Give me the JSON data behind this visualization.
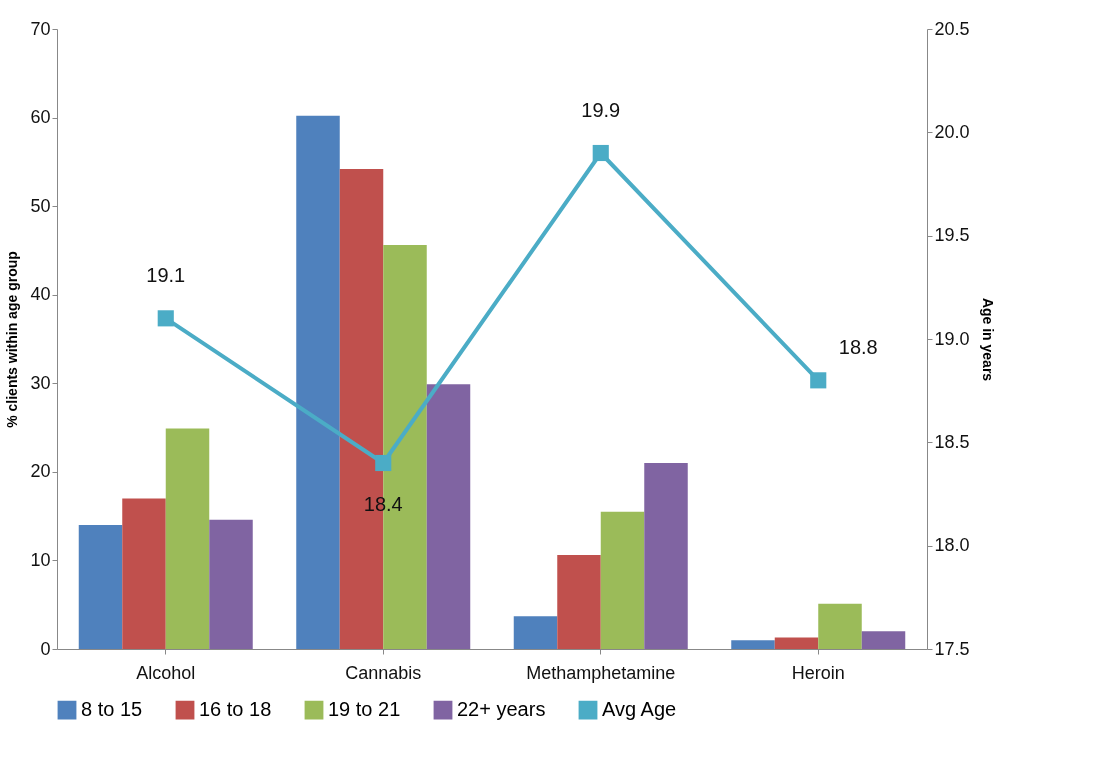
{
  "chart_data": {
    "type": "bar",
    "categories": [
      "Alcohol",
      "Cannabis",
      "Methamphetamine",
      "Heroin"
    ],
    "ylabel": "% clients within age group",
    "y2label": "Age in years",
    "ylim": [
      0,
      70
    ],
    "yticks": [
      0,
      10,
      20,
      30,
      40,
      50,
      60,
      70
    ],
    "y2lim": [
      17.5,
      20.5
    ],
    "y2ticks": [
      {
        "value": 17.5,
        "label": "17.5"
      },
      {
        "value": 18,
        "label": "18.0"
      },
      {
        "value": 18.5,
        "label": "18.5"
      },
      {
        "value": 19,
        "label": "19.0"
      },
      {
        "value": 19.5,
        "label": "19.5"
      },
      {
        "value": 20,
        "label": "20.0"
      },
      {
        "value": 20.5,
        "label": "20.5"
      }
    ],
    "series": [
      {
        "name": "8 to 15",
        "color": "#4f81bd",
        "values": [
          14,
          60.2,
          3.7,
          1
        ]
      },
      {
        "name": "16 to 18",
        "color": "#c0504d",
        "values": [
          17,
          54.2,
          10.6,
          1.3
        ]
      },
      {
        "name": "19 to 21",
        "color": "#9bbb59",
        "values": [
          24.9,
          45.6,
          15.5,
          5.1
        ]
      },
      {
        "name": "22+ years",
        "color": "#8064a2",
        "values": [
          14.6,
          29.9,
          21,
          2
        ]
      },
      {
        "name": "Avg Age",
        "type": "line",
        "axis": "y2",
        "color": "#4bacc6",
        "values": [
          19.1,
          18.4,
          19.9,
          18.8
        ],
        "marker": "square",
        "data_labels": true
      }
    ],
    "legend": "bottom",
    "grid": false
  }
}
